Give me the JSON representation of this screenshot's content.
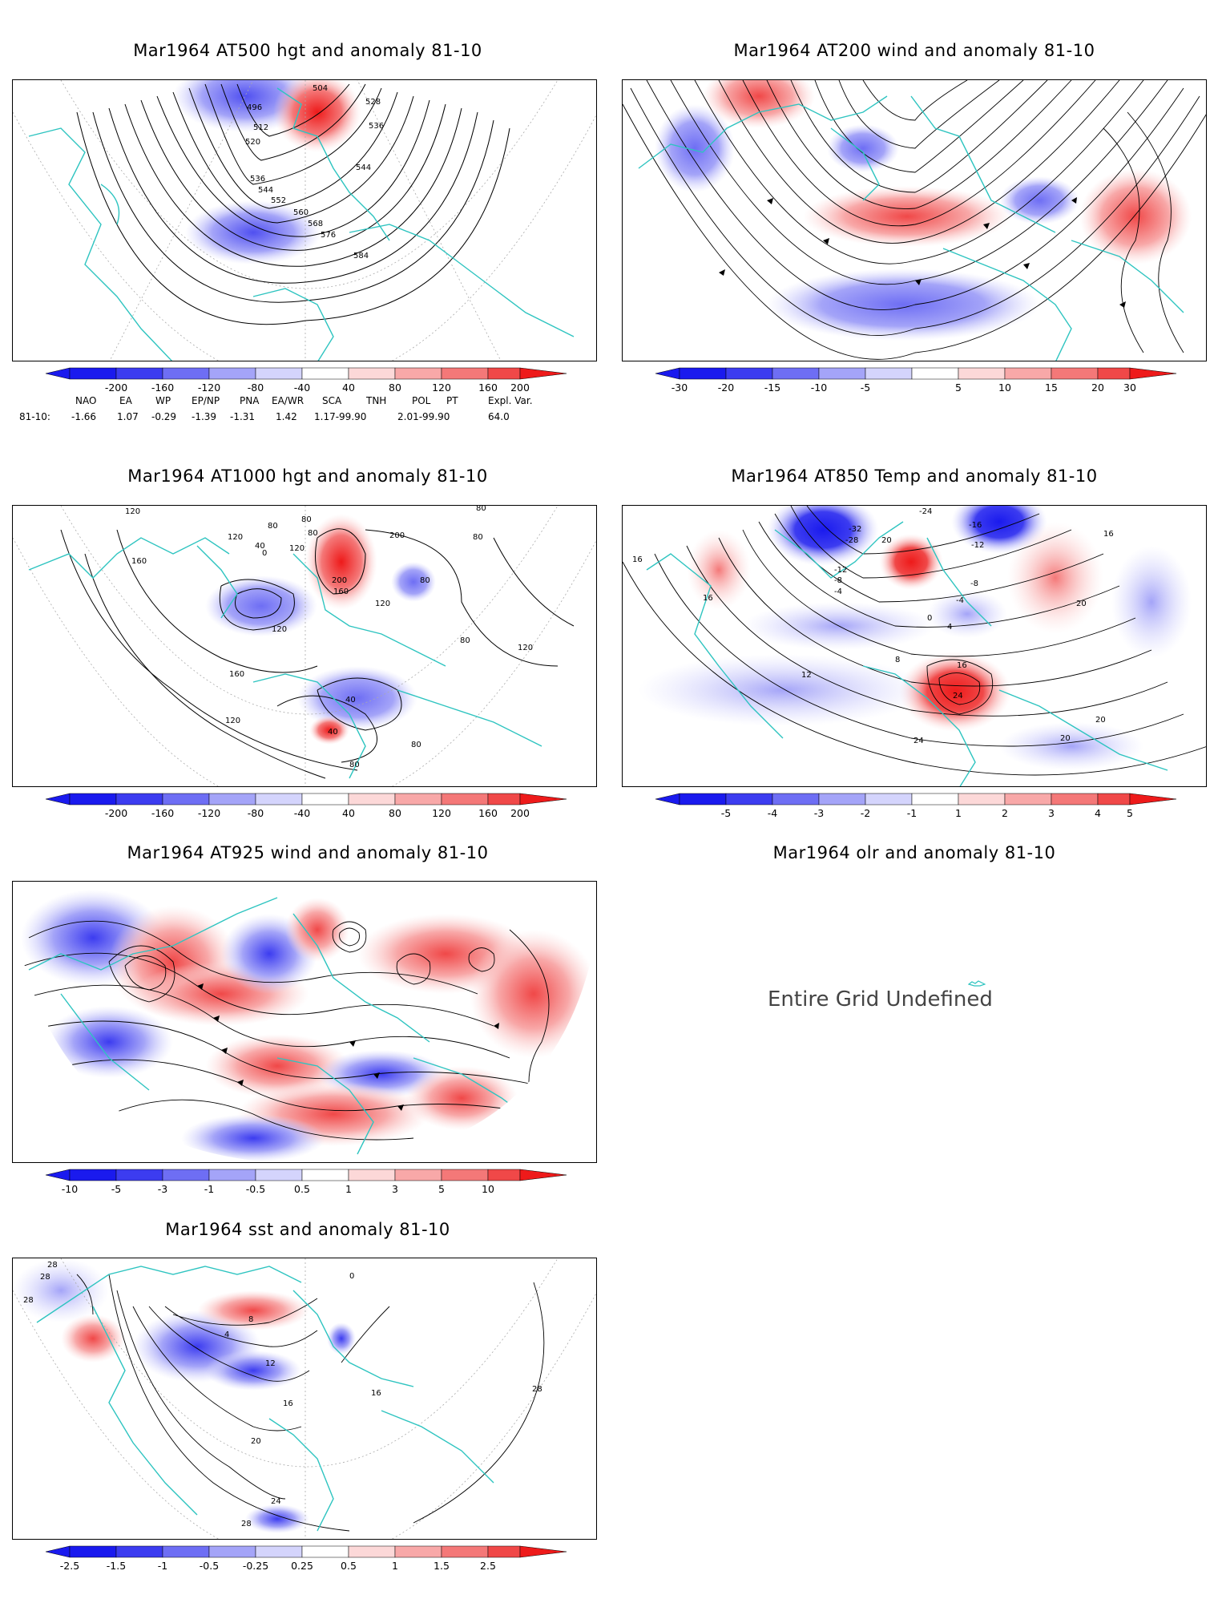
{
  "panels": [
    {
      "id": "at500",
      "title": "Mar1964 AT500 hgt and anomaly 81-10",
      "contour_labels": [
        "504",
        "496",
        "512",
        "520",
        "528",
        "536",
        "544",
        "536",
        "544",
        "552",
        "560",
        "568",
        "576",
        "584"
      ],
      "colorbar": [
        "-200",
        "-160",
        "-120",
        "-80",
        "-40",
        "40",
        "80",
        "120",
        "160",
        "200"
      ]
    },
    {
      "id": "at200",
      "title": "Mar1964 AT200 wind and anomaly 81-10",
      "contour_labels": [],
      "colorbar": [
        "-30",
        "-20",
        "-15",
        "-10",
        "-5",
        "5",
        "10",
        "15",
        "20",
        "30"
      ]
    },
    {
      "id": "at1000",
      "title": "Mar1964 AT1000 hgt and anomaly 81-10",
      "contour_labels": [
        "120",
        "160",
        "120",
        "40",
        "80",
        "0",
        "120",
        "80",
        "80",
        "200",
        "160",
        "80",
        "120",
        "80",
        "80",
        "120",
        "160",
        "200",
        "80",
        "120",
        "40",
        "40",
        "80",
        "80",
        "120"
      ],
      "colorbar": [
        "-200",
        "-160",
        "-120",
        "-80",
        "-40",
        "40",
        "80",
        "120",
        "160",
        "200"
      ]
    },
    {
      "id": "at850",
      "title": "Mar1964 AT850 Temp and anomaly 81-10",
      "contour_labels": [
        "16",
        "16",
        "-24",
        "-32",
        "-28",
        "20",
        "-12",
        "-8",
        "-4",
        "-16",
        "-12",
        "-8",
        "-4",
        "0",
        "4",
        "8",
        "12",
        "16",
        "24",
        "24",
        "20",
        "20",
        "20",
        "16"
      ],
      "colorbar": [
        "-5",
        "-4",
        "-3",
        "-2",
        "-1",
        "1",
        "2",
        "3",
        "4",
        "5"
      ]
    },
    {
      "id": "at925",
      "title": "Mar1964 AT925 wind and anomaly 81-10",
      "contour_labels": [],
      "colorbar": [
        "-10",
        "-5",
        "-3",
        "-1",
        "-0.5",
        "0.5",
        "1",
        "3",
        "5",
        "10"
      ]
    },
    {
      "id": "olr",
      "title": "Mar1964 olr and anomaly 81-10",
      "message": "Entire Grid Undefined"
    },
    {
      "id": "sst",
      "title": "Mar1964 sst and anomaly 81-10",
      "contour_labels": [
        "28",
        "28",
        "28",
        "4",
        "8",
        "12",
        "16",
        "20",
        "24",
        "28",
        "0",
        "16",
        "28"
      ],
      "colorbar": [
        "-2.5",
        "-1.5",
        "-1",
        "-0.5",
        "-0.25",
        "0.25",
        "0.5",
        "1",
        "1.5",
        "2.5"
      ]
    }
  ],
  "indices": {
    "headers": [
      "NAO",
      "EA",
      "WP",
      "EP/NP",
      "PNA",
      "EA/WR",
      "SCA",
      "TNH",
      "POL",
      "PT",
      "Expl. Var."
    ],
    "row_label": "81-10:",
    "values": [
      "-1.66",
      "1.07",
      "-0.29",
      "-1.39",
      "-1.31",
      "1.42",
      "1.17-99.90",
      "2.01-99.90",
      "64.0"
    ]
  },
  "colors": {
    "coastline": "#2ec4c0",
    "contour": "#000000",
    "negative": [
      "#1a1aee",
      "#3c3cf0",
      "#6e6ef4",
      "#a4a4f8",
      "#d4d4fc"
    ],
    "positive": [
      "#fcd8d8",
      "#f8a8a8",
      "#f47878",
      "#f04848",
      "#ee1a1a"
    ]
  }
}
